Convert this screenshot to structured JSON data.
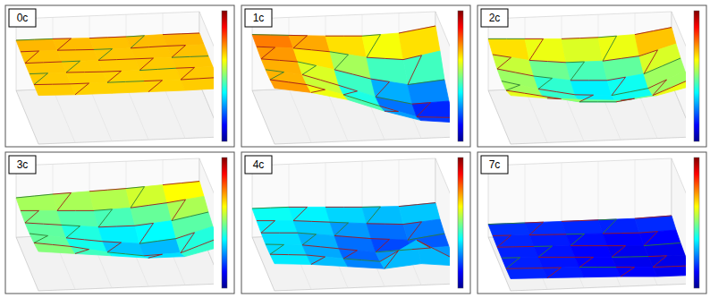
{
  "chart_data": [
    {
      "type": "surface",
      "title": "0c",
      "zlim": [
        0,
        1
      ],
      "z": [
        [
          0.7,
          0.7,
          0.69,
          0.69,
          0.7,
          0.7
        ],
        [
          0.69,
          0.69,
          0.68,
          0.68,
          0.69,
          0.69
        ],
        [
          0.68,
          0.68,
          0.68,
          0.68,
          0.68,
          0.68
        ],
        [
          0.68,
          0.68,
          0.67,
          0.67,
          0.68,
          0.68
        ],
        [
          0.68,
          0.67,
          0.67,
          0.67,
          0.67,
          0.68
        ],
        [
          0.68,
          0.67,
          0.67,
          0.67,
          0.67,
          0.68
        ]
      ]
    },
    {
      "type": "surface",
      "title": "1c",
      "zlim": [
        0,
        1
      ],
      "z": [
        [
          0.78,
          0.75,
          0.72,
          0.7,
          0.72,
          0.8
        ],
        [
          0.76,
          0.72,
          0.65,
          0.55,
          0.5,
          0.6
        ],
        [
          0.74,
          0.68,
          0.55,
          0.4,
          0.3,
          0.35
        ],
        [
          0.74,
          0.65,
          0.48,
          0.3,
          0.18,
          0.2
        ],
        [
          0.75,
          0.66,
          0.5,
          0.32,
          0.15,
          0.12
        ],
        [
          0.78,
          0.7,
          0.58,
          0.4,
          0.25,
          0.2
        ]
      ]
    },
    {
      "type": "surface",
      "title": "2c",
      "zlim": [
        0,
        1
      ],
      "z": [
        [
          0.72,
          0.7,
          0.68,
          0.68,
          0.7,
          0.78
        ],
        [
          0.65,
          0.55,
          0.5,
          0.5,
          0.55,
          0.7
        ],
        [
          0.6,
          0.48,
          0.4,
          0.38,
          0.45,
          0.65
        ],
        [
          0.58,
          0.45,
          0.35,
          0.32,
          0.4,
          0.62
        ],
        [
          0.6,
          0.5,
          0.4,
          0.38,
          0.45,
          0.65
        ],
        [
          0.68,
          0.62,
          0.58,
          0.55,
          0.6,
          0.72
        ]
      ]
    },
    {
      "type": "surface",
      "title": "3c",
      "zlim": [
        0,
        1
      ],
      "z": [
        [
          0.55,
          0.58,
          0.6,
          0.62,
          0.65,
          0.68
        ],
        [
          0.52,
          0.5,
          0.48,
          0.5,
          0.55,
          0.62
        ],
        [
          0.5,
          0.45,
          0.4,
          0.4,
          0.45,
          0.55
        ],
        [
          0.5,
          0.42,
          0.35,
          0.3,
          0.35,
          0.5
        ],
        [
          0.52,
          0.45,
          0.35,
          0.28,
          0.3,
          0.48
        ],
        [
          0.55,
          0.5,
          0.45,
          0.4,
          0.4,
          0.52
        ]
      ]
    },
    {
      "type": "surface",
      "title": "4c",
      "zlim": [
        0,
        1
      ],
      "z": [
        [
          0.4,
          0.4,
          0.38,
          0.36,
          0.35,
          0.38
        ],
        [
          0.38,
          0.36,
          0.32,
          0.28,
          0.25,
          0.3
        ],
        [
          0.36,
          0.34,
          0.28,
          0.22,
          0.18,
          0.25
        ],
        [
          0.35,
          0.32,
          0.25,
          0.18,
          0.2,
          0.22
        ],
        [
          0.36,
          0.33,
          0.26,
          0.2,
          0.48,
          0.2
        ],
        [
          0.38,
          0.35,
          0.3,
          0.25,
          0.3,
          0.25
        ]
      ]
    },
    {
      "type": "surface",
      "title": "7c",
      "zlim": [
        0,
        1
      ],
      "z": [
        [
          0.18,
          0.18,
          0.18,
          0.18,
          0.18,
          0.2
        ],
        [
          0.17,
          0.16,
          0.15,
          0.14,
          0.13,
          0.15
        ],
        [
          0.16,
          0.15,
          0.14,
          0.12,
          0.1,
          0.12
        ],
        [
          0.16,
          0.15,
          0.13,
          0.11,
          0.1,
          0.1
        ],
        [
          0.16,
          0.15,
          0.14,
          0.12,
          0.1,
          0.1
        ],
        [
          0.17,
          0.16,
          0.15,
          0.14,
          0.12,
          0.12
        ]
      ]
    }
  ]
}
